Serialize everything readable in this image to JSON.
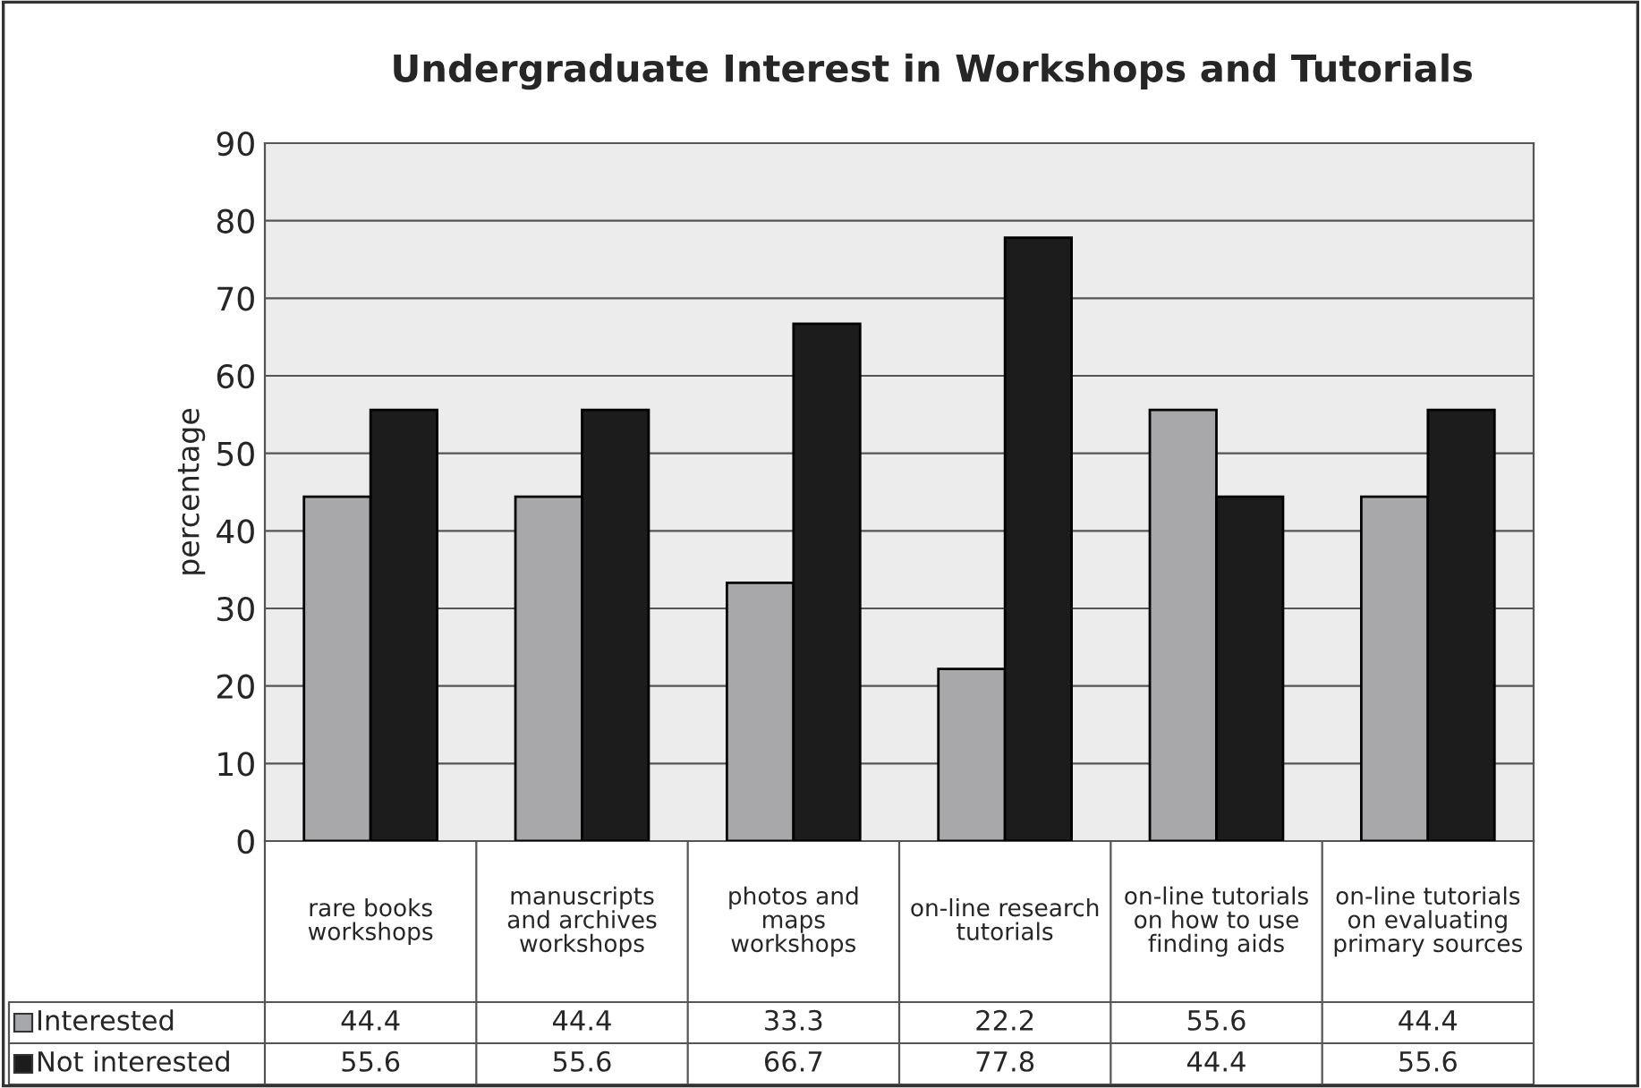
{
  "chart_data": {
    "type": "bar",
    "title": "Undergraduate Interest in Workshops and Tutorials",
    "ylabel": "percentage",
    "categories": [
      "rare books\nworkshops",
      "manuscripts\nand archives\nworkshops",
      "photos and\nmaps\nworkshops",
      "on-line research\ntutorials",
      "on-line tutorials\non how to use\nfinding aids",
      "on-line tutorials\non evaluating\nprimary sources"
    ],
    "series": [
      {
        "name": "Interested",
        "color": "#a7a8ac",
        "values": [
          44.4,
          44.4,
          33.3,
          22.2,
          55.6,
          44.4
        ]
      },
      {
        "name": "Not interested",
        "color": "#1c1c1c",
        "values": [
          55.6,
          55.6,
          66.7,
          77.8,
          44.4,
          55.6
        ]
      }
    ],
    "ylim": [
      0,
      90
    ],
    "yticks": [
      0,
      10,
      20,
      30,
      40,
      50,
      60,
      70,
      80,
      90
    ],
    "grid": "y",
    "legend": "bottom left",
    "data_labels": true
  }
}
